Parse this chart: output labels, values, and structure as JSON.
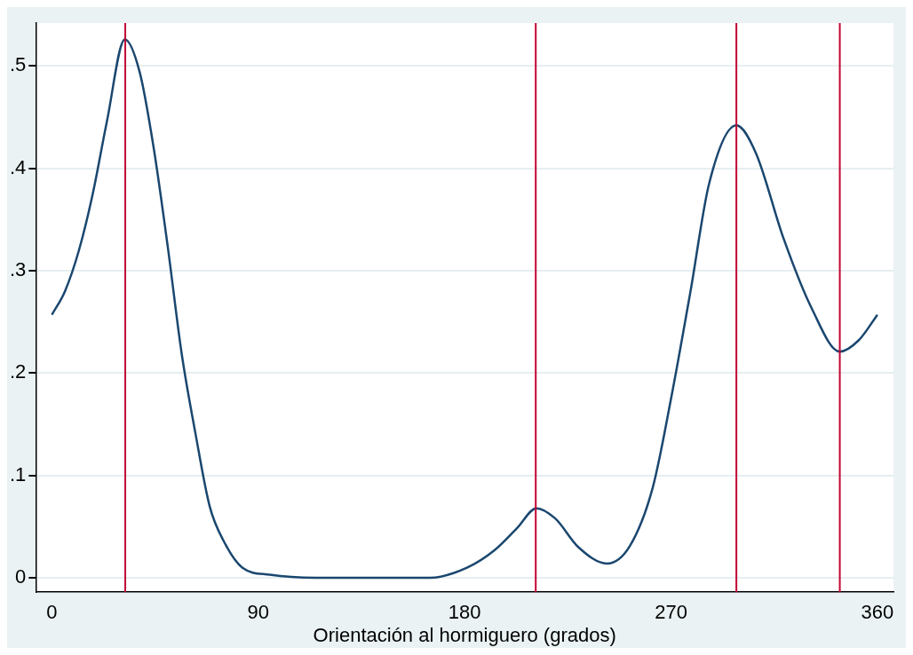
{
  "chart_data": {
    "type": "line",
    "xlabel": "Orientación al hormiguero (grados)",
    "x": [
      0,
      5.7,
      11.8,
      17.9,
      24,
      31.8,
      38.3,
      44.4,
      50.5,
      56.6,
      62.7,
      68.8,
      74.9,
      83,
      95,
      115,
      165,
      181,
      193,
      203,
      211.3,
      219.5,
      229.6,
      242,
      252,
      262,
      270,
      278.5,
      286.6,
      298.5,
      307,
      319,
      331.4,
      343.6,
      351.8,
      360
    ],
    "series": [
      {
        "color": "#1a476f",
        "values": [
          0.257,
          0.28,
          0.32,
          0.376,
          0.446,
          0.526,
          0.494,
          0.42,
          0.324,
          0.219,
          0.14,
          0.07,
          0.036,
          0.01,
          0.003,
          0,
          0,
          0.01,
          0.027,
          0.049,
          0.068,
          0.058,
          0.03,
          0.014,
          0.031,
          0.088,
          0.175,
          0.28,
          0.385,
          0.442,
          0.415,
          0.332,
          0.263,
          0.221,
          0.232,
          0.257
        ]
      }
    ],
    "xlim": [
      -7,
      367
    ],
    "xticks": [
      0,
      90,
      180,
      270,
      360
    ],
    "ylim": [
      -0.014,
      0.542
    ],
    "yticks": [
      {
        "value": 0,
        "label": "0"
      },
      {
        "value": 0.1,
        "label": ".1"
      },
      {
        "value": 0.2,
        "label": ".2"
      },
      {
        "value": 0.3,
        "label": ".3"
      },
      {
        "value": 0.4,
        "label": ".4"
      },
      {
        "value": 0.5,
        "label": ".5"
      }
    ],
    "grid": "y",
    "legend": false,
    "marker": "none",
    "line_style": "solid",
    "ref_lines": [
      {
        "axis": "x",
        "value": 32,
        "color": "#c10534"
      },
      {
        "axis": "x",
        "value": 211,
        "color": "#c10534"
      },
      {
        "axis": "x",
        "value": 298.5,
        "color": "#c10534"
      },
      {
        "axis": "x",
        "value": 343.6,
        "color": "#c10534"
      }
    ]
  }
}
